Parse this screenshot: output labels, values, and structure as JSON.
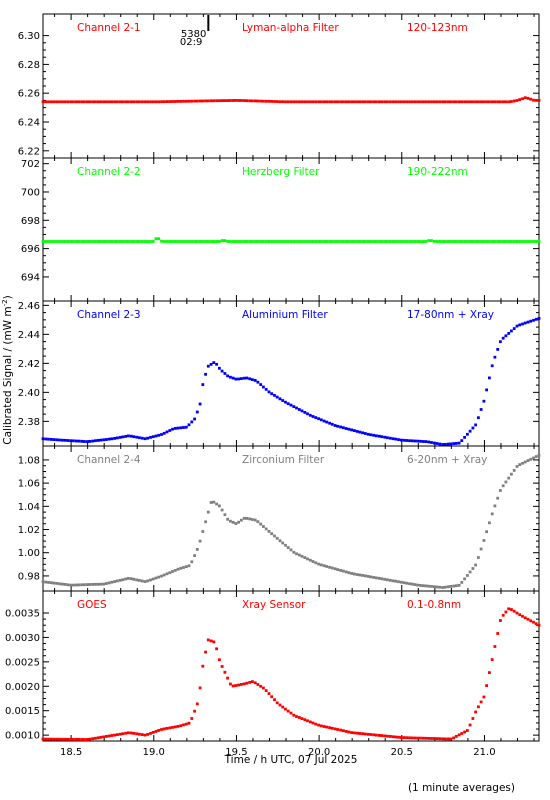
{
  "chart_data": {
    "type": "scatter",
    "x_axis": {
      "label": "Time / h UTC, 07 Jul 2025",
      "range": [
        18.33,
        21.33
      ],
      "ticks": [
        "18.5",
        "19.0",
        "19.5",
        "20.0",
        "20.5",
        "21.0"
      ],
      "tick_values": [
        18.5,
        19.0,
        19.5,
        20.0,
        20.5,
        21.0
      ]
    },
    "y_label": "Calibrated Signal / (mW m",
    "y_label_sup": "-2",
    "y_label_end": ")",
    "footnote": "(1 minute averages)",
    "marker": {
      "label_top": "5380",
      "label_bottom": "02:9",
      "x": 19.33
    },
    "panels": [
      {
        "channel": "Channel 2-1",
        "filter": "Lyman-alpha Filter",
        "band": "120-123nm",
        "color": "#ff0000",
        "ylim": [
          6.215,
          6.315
        ],
        "yticks": [
          "6.22",
          "6.24",
          "6.26",
          "6.28",
          "6.30"
        ],
        "ytick_values": [
          6.22,
          6.24,
          6.26,
          6.28,
          6.3
        ],
        "series": [
          [
            18.33,
            6.254
          ],
          [
            18.6,
            6.254
          ],
          [
            19.0,
            6.254
          ],
          [
            19.5,
            6.255
          ],
          [
            19.8,
            6.254
          ],
          [
            20.5,
            6.254
          ],
          [
            21.0,
            6.254
          ],
          [
            21.15,
            6.254
          ],
          [
            21.2,
            6.255
          ],
          [
            21.25,
            6.257
          ],
          [
            21.3,
            6.255
          ],
          [
            21.33,
            6.255
          ]
        ]
      },
      {
        "channel": "Channel 2-2",
        "filter": "Herzberg Filter",
        "band": "190-222nm",
        "color": "#00ff00",
        "ylim": [
          692.3,
          702.4
        ],
        "yticks": [
          "694",
          "696",
          "698",
          "700",
          "702"
        ],
        "ytick_values": [
          694,
          696,
          698,
          700,
          702
        ],
        "series": [
          [
            18.33,
            696.5
          ],
          [
            19.0,
            696.5
          ],
          [
            19.02,
            696.8
          ],
          [
            19.05,
            696.5
          ],
          [
            19.4,
            696.5
          ],
          [
            19.42,
            696.6
          ],
          [
            19.45,
            696.5
          ],
          [
            20.65,
            696.5
          ],
          [
            20.67,
            696.6
          ],
          [
            20.7,
            696.5
          ],
          [
            21.33,
            696.5
          ]
        ]
      },
      {
        "channel": "Channel 2-3",
        "filter": "Aluminium Filter",
        "band": "17-80nm + Xray",
        "color": "#0000ff",
        "ylim": [
          2.363,
          2.463
        ],
        "yticks": [
          "2.38",
          "2.40",
          "2.42",
          "2.44",
          "2.46"
        ],
        "ytick_values": [
          2.38,
          2.4,
          2.42,
          2.44,
          2.46
        ],
        "series": [
          [
            18.33,
            2.368
          ],
          [
            18.45,
            2.367
          ],
          [
            18.6,
            2.366
          ],
          [
            18.75,
            2.368
          ],
          [
            18.85,
            2.37
          ],
          [
            18.95,
            2.368
          ],
          [
            19.05,
            2.371
          ],
          [
            19.12,
            2.375
          ],
          [
            19.2,
            2.376
          ],
          [
            19.25,
            2.382
          ],
          [
            19.28,
            2.392
          ],
          [
            19.3,
            2.408
          ],
          [
            19.33,
            2.418
          ],
          [
            19.37,
            2.421
          ],
          [
            19.4,
            2.416
          ],
          [
            19.45,
            2.411
          ],
          [
            19.5,
            2.409
          ],
          [
            19.56,
            2.41
          ],
          [
            19.62,
            2.408
          ],
          [
            19.7,
            2.4
          ],
          [
            19.8,
            2.393
          ],
          [
            19.95,
            2.384
          ],
          [
            20.1,
            2.377
          ],
          [
            20.3,
            2.371
          ],
          [
            20.5,
            2.367
          ],
          [
            20.65,
            2.366
          ],
          [
            20.75,
            2.364
          ],
          [
            20.85,
            2.365
          ],
          [
            20.95,
            2.378
          ],
          [
            21.0,
            2.395
          ],
          [
            21.05,
            2.42
          ],
          [
            21.1,
            2.436
          ],
          [
            21.2,
            2.446
          ],
          [
            21.33,
            2.451
          ]
        ]
      },
      {
        "channel": "Channel 2-4",
        "filter": "Zirconium Filter",
        "band": "6-20nm + Xray",
        "color": "#808080",
        "ylim": [
          0.967,
          1.092
        ],
        "yticks": [
          "0.98",
          "1.00",
          "1.02",
          "1.04",
          "1.06",
          "1.08"
        ],
        "ytick_values": [
          0.98,
          1.0,
          1.02,
          1.04,
          1.06,
          1.08
        ],
        "series": [
          [
            18.33,
            0.975
          ],
          [
            18.5,
            0.972
          ],
          [
            18.7,
            0.973
          ],
          [
            18.85,
            0.978
          ],
          [
            18.95,
            0.975
          ],
          [
            19.05,
            0.98
          ],
          [
            19.15,
            0.986
          ],
          [
            19.22,
            0.989
          ],
          [
            19.27,
            1.005
          ],
          [
            19.32,
            1.03
          ],
          [
            19.35,
            1.045
          ],
          [
            19.4,
            1.04
          ],
          [
            19.45,
            1.028
          ],
          [
            19.5,
            1.025
          ],
          [
            19.55,
            1.03
          ],
          [
            19.62,
            1.028
          ],
          [
            19.7,
            1.018
          ],
          [
            19.85,
            1.0
          ],
          [
            20.0,
            0.99
          ],
          [
            20.2,
            0.982
          ],
          [
            20.4,
            0.977
          ],
          [
            20.6,
            0.972
          ],
          [
            20.75,
            0.97
          ],
          [
            20.85,
            0.972
          ],
          [
            20.95,
            0.99
          ],
          [
            21.0,
            1.012
          ],
          [
            21.05,
            1.035
          ],
          [
            21.1,
            1.055
          ],
          [
            21.2,
            1.075
          ],
          [
            21.33,
            1.084
          ]
        ]
      },
      {
        "channel": "GOES",
        "filter": "Xray Sensor",
        "band": "0.1-0.8nm",
        "color": "#ff0000",
        "ylim": [
          0.00088,
          0.00395
        ],
        "yticks": [
          "0.0010",
          "0.0015",
          "0.0020",
          "0.0025",
          "0.0030",
          "0.0035"
        ],
        "ytick_values": [
          0.001,
          0.0015,
          0.002,
          0.0025,
          0.003,
          0.0035
        ],
        "series": [
          [
            18.33,
            0.00092
          ],
          [
            18.6,
            0.00091
          ],
          [
            18.85,
            0.00105
          ],
          [
            18.95,
            0.001
          ],
          [
            19.05,
            0.00112
          ],
          [
            19.15,
            0.00118
          ],
          [
            19.22,
            0.00125
          ],
          [
            19.27,
            0.0017
          ],
          [
            19.3,
            0.0025
          ],
          [
            19.33,
            0.00295
          ],
          [
            19.37,
            0.0029
          ],
          [
            19.4,
            0.0025
          ],
          [
            19.47,
            0.002
          ],
          [
            19.55,
            0.00205
          ],
          [
            19.6,
            0.0021
          ],
          [
            19.67,
            0.00195
          ],
          [
            19.75,
            0.00165
          ],
          [
            19.85,
            0.0014
          ],
          [
            20.0,
            0.0012
          ],
          [
            20.2,
            0.00105
          ],
          [
            20.5,
            0.00095
          ],
          [
            20.8,
            0.00092
          ],
          [
            20.9,
            0.0011
          ],
          [
            20.95,
            0.0015
          ],
          [
            21.0,
            0.0018
          ],
          [
            21.05,
            0.0026
          ],
          [
            21.1,
            0.0034
          ],
          [
            21.15,
            0.0036
          ],
          [
            21.22,
            0.00345
          ],
          [
            21.33,
            0.00325
          ]
        ]
      }
    ]
  }
}
